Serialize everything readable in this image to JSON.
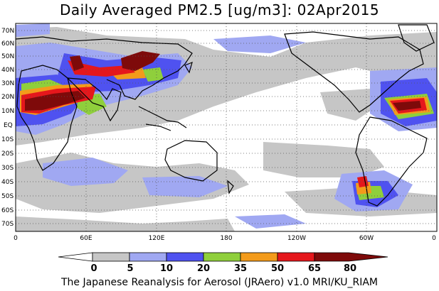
{
  "title": "Daily Averaged PM2.5 [ug/m3]: 02Apr2015",
  "footer": "The Japanese Reanalysis for Aerosol (JRAero) v1.0 MRI/KU_RIAM",
  "map": {
    "lat_labels": [
      "70N",
      "60N",
      "50N",
      "40N",
      "30N",
      "20N",
      "10N",
      "EQ",
      "10S",
      "20S",
      "30S",
      "40S",
      "50S",
      "60S",
      "70S"
    ],
    "lon_labels": [
      "0",
      "60E",
      "120E",
      "180",
      "120W",
      "60W",
      "0"
    ]
  },
  "colorbar": {
    "labels": [
      "0",
      "5",
      "10",
      "20",
      "35",
      "50",
      "65",
      "80"
    ],
    "colors": [
      "#ffffff",
      "#c6c6c6",
      "#a0a8f2",
      "#4f52f0",
      "#8fcf3c",
      "#f39b1b",
      "#e5171c",
      "#7e0a0a"
    ]
  }
}
